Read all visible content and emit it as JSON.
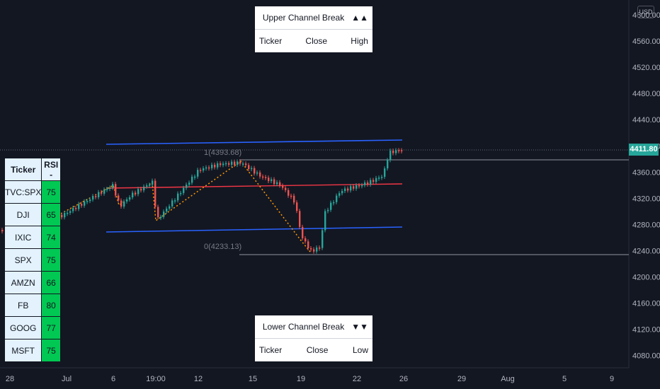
{
  "currency_badge": "USD",
  "last_price": "4411.80",
  "price_axis": [
    "4600.00",
    "4560.00",
    "4520.00",
    "4480.00",
    "4440.00",
    "4400.00",
    "4360.00",
    "4320.00",
    "4280.00",
    "4240.00",
    "4200.00",
    "4160.00",
    "4120.00",
    "4080.00"
  ],
  "time_axis": [
    "28",
    "Jul",
    "6",
    "19:00",
    "12",
    "15",
    "19",
    "22",
    "26",
    "29",
    "Aug",
    "5",
    "9"
  ],
  "pivot_high_label": "1(4393.68)",
  "pivot_low_label": "0(4233.13)",
  "upper_panel": {
    "title": "Upper Channel Break",
    "arrows": "▲▲",
    "cols": [
      "Ticker",
      "Close",
      "High"
    ]
  },
  "lower_panel": {
    "title": "Lower Channel Break",
    "arrows": "▼▼",
    "cols": [
      "Ticker",
      "Close",
      "Low"
    ]
  },
  "rsi_table": {
    "headers": [
      "Ticker",
      "RSI -"
    ],
    "rows": [
      {
        "ticker": "TVC:SPX",
        "rsi": "75"
      },
      {
        "ticker": "DJI",
        "rsi": "65"
      },
      {
        "ticker": "IXIC",
        "rsi": "74"
      },
      {
        "ticker": "SPX",
        "rsi": "75"
      },
      {
        "ticker": "AMZN",
        "rsi": "66"
      },
      {
        "ticker": "FB",
        "rsi": "80"
      },
      {
        "ticker": "GOOG",
        "rsi": "77"
      },
      {
        "ticker": "MSFT",
        "rsi": "75"
      }
    ]
  },
  "colors": {
    "bg": "#131722",
    "up": "#26a69a",
    "down": "#ef5350",
    "channel": "#2962ff",
    "mid": "#f23645",
    "zigzag": "#ff9800",
    "rsi_cell": "#00c853",
    "ticker_cell": "#e3f2fd"
  },
  "chart_data": {
    "type": "candlestick",
    "ylim": [
      4060,
      4620
    ],
    "close_path": [
      [
        "Jun 25",
        4275
      ],
      [
        "Jun 28",
        4290
      ],
      [
        "Jul 1",
        4320
      ],
      [
        "Jul 2",
        4352
      ],
      [
        "Jul 6",
        4345
      ],
      [
        "Jul 7",
        4322
      ],
      [
        "Jul 8",
        4345
      ],
      [
        "Jul 9",
        4355
      ],
      [
        "Jul 8 19:00",
        4295
      ],
      [
        "Jul 9 19:00",
        4315
      ],
      [
        "Jul 12",
        4375
      ],
      [
        "Jul 13",
        4385
      ],
      [
        "Jul 14",
        4393
      ],
      [
        "Jul 15",
        4378
      ],
      [
        "Jul 16",
        4365
      ],
      [
        "Jul 16 b",
        4355
      ],
      [
        "Jul 19",
        4300
      ],
      [
        "Jul 19 b",
        4245
      ],
      [
        "Jul 20",
        4234
      ],
      [
        "Jul 20 b",
        4270
      ],
      [
        "Jul 21",
        4335
      ],
      [
        "Jul 22",
        4360
      ],
      [
        "Jul 23",
        4375
      ],
      [
        "Jul 23 b",
        4395
      ],
      [
        "Jul 26",
        4411.8
      ]
    ]
  }
}
